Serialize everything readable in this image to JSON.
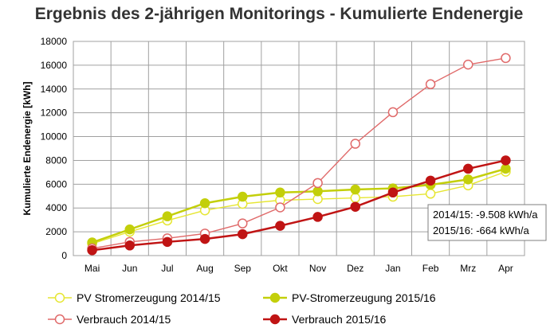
{
  "chart_data": {
    "type": "line",
    "title": "Ergebnis des 2-jährigen Monitorings - Kumulierte Endenergie",
    "xlabel": "",
    "ylabel": "Kumulierte Endenergie [kWh]",
    "categories": [
      "Mai",
      "Jun",
      "Jul",
      "Aug",
      "Sep",
      "Okt",
      "Nov",
      "Dez",
      "Jan",
      "Feb",
      "Mrz",
      "Apr"
    ],
    "ylim": [
      0,
      18000
    ],
    "yticks": [
      "0",
      "2000",
      "4000",
      "6000",
      "8000",
      "10000",
      "12000",
      "14000",
      "16000",
      "18000"
    ],
    "grid": true,
    "legend_position": "bottom",
    "series": [
      {
        "name": "PV Stromerzeugung 2014/15",
        "color": "#e6e632",
        "marker": "hollow",
        "values": [
          1000,
          2000,
          2950,
          3800,
          4350,
          4650,
          4750,
          4850,
          4950,
          5200,
          5900,
          7050
        ]
      },
      {
        "name": "PV-Stromerzeugung 2015/16",
        "color": "#c3cf0a",
        "marker": "filled",
        "values": [
          1100,
          2200,
          3300,
          4400,
          4950,
          5300,
          5400,
          5550,
          5650,
          5950,
          6400,
          7300
        ]
      },
      {
        "name": "Verbrauch  2014/15",
        "color": "#e06a6a",
        "marker": "hollow",
        "values": [
          600,
          1150,
          1450,
          1850,
          2700,
          4050,
          6100,
          9400,
          12050,
          14400,
          16050,
          16600
        ]
      },
      {
        "name": "Verbrauch  2015/16",
        "color": "#c01414",
        "marker": "filled",
        "values": [
          450,
          850,
          1150,
          1400,
          1800,
          2500,
          3250,
          4100,
          5300,
          6300,
          7300,
          8000
        ]
      }
    ],
    "annotations": [
      "2014/15: -9.508 kWh/a",
      "2015/16: -664 kWh/a"
    ]
  }
}
